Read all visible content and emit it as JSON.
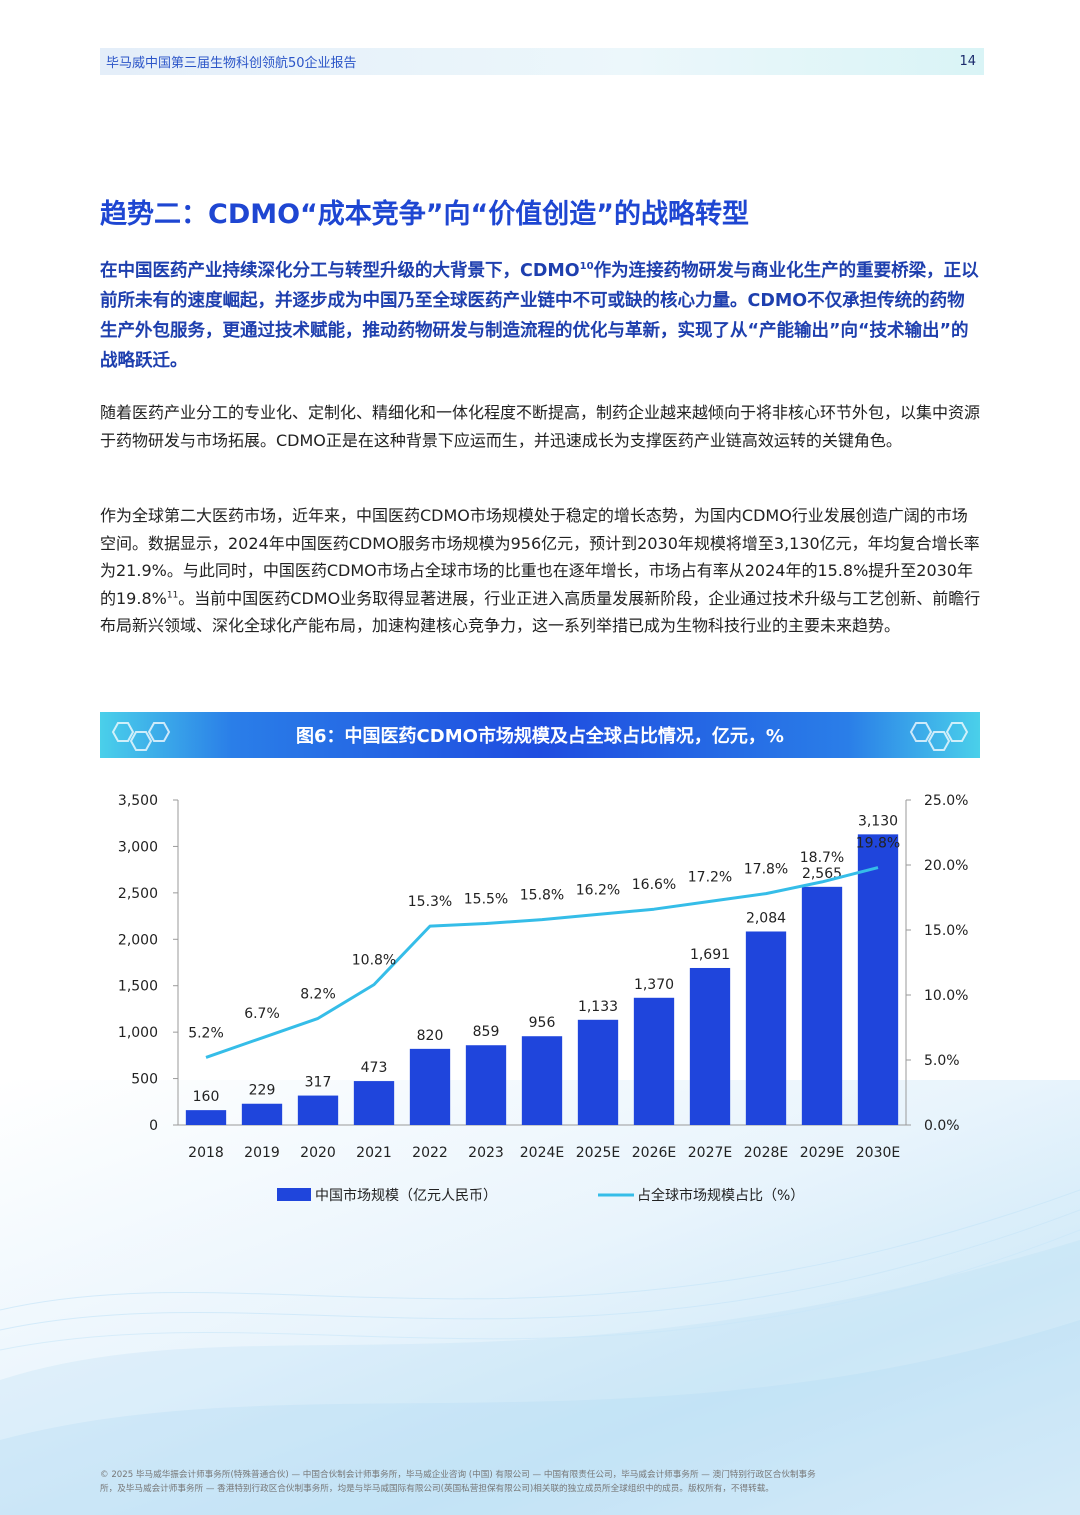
{
  "header": {
    "title": "毕马威中国第三届生物科创领航50企业报告",
    "page_number": "14"
  },
  "section": {
    "title": "趋势二：CDMO“成本竞争”向“价值创造”的战略转型",
    "lead_1": "在中国医药产业持续深化分工与转型升级的大背景下，CDMO",
    "lead_sup": "10",
    "lead_2": "作为连接药物研发与商业化生产的重要桥梁，正以前所未有的速度崛起，并逐步成为中国乃至全球医药产业链中不可或缺的核心力量。CDMO不仅承担传统的药物生产外包服务，更通过技术赋能，推动药物研发与制造流程的优化与革新，实现了从“产能输出”向“技术输出”的战略跃迁。",
    "para1": "随着医药产业分工的专业化、定制化、精细化和一体化程度不断提高，制药企业越来越倾向于将非核心环节外包，以集中资源于药物研发与市场拓展。CDMO正是在这种背景下应运而生，并迅速成长为支撑医药产业链高效运转的关键角色。",
    "para2_1": "作为全球第二大医药市场，近年来，中国医药CDMO市场规模处于稳定的增长态势，为国内CDMO行业发展创造广阔的市场空间。数据显示，2024年中国医药CDMO服务市场规模为956亿元，预计到2030年规模将增至3,130亿元，年均复合增长率为21.9%。与此同时，中国医药CDMO市场占全球市场的比重也在逐年增长，市场占有率从2024年的15.8%提升至2030年的19.8%",
    "para2_sup": "11",
    "para2_2": "。当前中国医药CDMO业务取得显著进展，行业正进入高质量发展新阶段，企业通过技术升级与工艺创新、前瞻行布局新兴领域、深化全球化产能布局，加速构建核心竞争力，这一系列举措已成为生物科技行业的主要未来趋势。"
  },
  "figure": {
    "title": "图6：中国医药CDMO市场规模及占全球占比情况，亿元，%"
  },
  "chart_data": {
    "type": "bar",
    "categories": [
      "2018",
      "2019",
      "2020",
      "2021",
      "2022",
      "2023",
      "2024E",
      "2025E",
      "2026E",
      "2027E",
      "2028E",
      "2029E",
      "2030E"
    ],
    "series": [
      {
        "name": "中国市场规模（亿元人民币）",
        "type": "bar",
        "axis": "left",
        "values": [
          160,
          229,
          317,
          473,
          820,
          859,
          956,
          1133,
          1370,
          1691,
          2084,
          2565,
          3130
        ],
        "labels": [
          "160",
          "229",
          "317",
          "473",
          "820",
          "859",
          "956",
          "1,133",
          "1,370",
          "1,691",
          "2,084",
          "2,565",
          "3,130"
        ],
        "color": "#1f45dc"
      },
      {
        "name": "占全球市场规模占比（%）",
        "type": "line",
        "axis": "right",
        "values": [
          5.2,
          6.7,
          8.2,
          10.8,
          15.3,
          15.5,
          15.8,
          16.2,
          16.6,
          17.2,
          17.8,
          18.7,
          19.8
        ],
        "labels": [
          "5.2%",
          "6.7%",
          "8.2%",
          "10.8%",
          "15.3%",
          "15.5%",
          "15.8%",
          "16.2%",
          "16.6%",
          "17.2%",
          "17.8%",
          "18.7%",
          "19.8%"
        ],
        "color": "#35bde8"
      }
    ],
    "y_left": {
      "ylim": [
        0,
        3500
      ],
      "ticks": [
        0,
        500,
        1000,
        1500,
        2000,
        2500,
        3000,
        3500
      ],
      "tick_labels": [
        "0",
        "500",
        "1,000",
        "1,500",
        "2,000",
        "2,500",
        "3,000",
        "3,500"
      ]
    },
    "y_right": {
      "ylim": [
        0,
        25
      ],
      "ticks": [
        0,
        5,
        10,
        15,
        20,
        25
      ],
      "tick_labels": [
        "0.0%",
        "5.0%",
        "10.0%",
        "15.0%",
        "20.0%",
        "25.0%"
      ]
    },
    "legend_position": "bottom",
    "grid": false
  },
  "footer": {
    "line1": "© 2025 毕马威华振会计师事务所(特殊普通合伙) — 中国合伙制会计师事务所，毕马威企业咨询 (中国) 有限公司 — 中国有限责任公司，毕马威会计师事务所 — 澳门特别行政区合伙制事务",
    "line2": "所，及毕马威会计师事务所 — 香港特别行政区合伙制事务所，均是与毕马威国际有限公司(英国私营担保有限公司)相关联的独立成员所全球组织中的成员。版权所有，不得转载。"
  }
}
